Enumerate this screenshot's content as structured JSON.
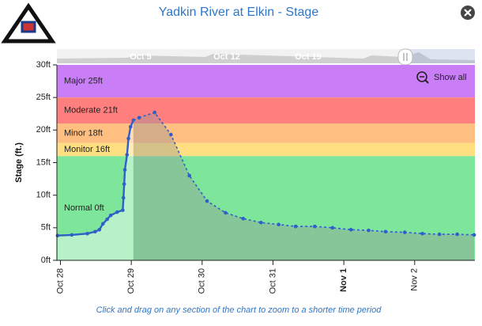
{
  "chart_data": {
    "type": "line",
    "title": "Yadkin River at Elkin - Stage",
    "y_label": "Stage (ft.)",
    "footer": "Click and drag on any section of the chart to zoom to a shorter time period",
    "reset_button": "Show all",
    "navigator_labels": [
      "Oct 5",
      "Oct 12",
      "Oct 19"
    ],
    "xlim": [
      -0.05,
      5.85
    ],
    "xticks": [
      {
        "value": 0,
        "label": "Oct 28"
      },
      {
        "value": 1,
        "label": "Oct 29"
      },
      {
        "value": 2,
        "label": "Oct 30"
      },
      {
        "value": 3,
        "label": "Oct 31"
      },
      {
        "value": 4,
        "label": "Nov 1",
        "bold": true
      },
      {
        "value": 5,
        "label": "Nov 2"
      }
    ],
    "ylim": [
      0,
      30
    ],
    "yticks": [
      {
        "value": 0,
        "label": "0ft"
      },
      {
        "value": 5,
        "label": "5ft"
      },
      {
        "value": 10,
        "label": "10ft"
      },
      {
        "value": 15,
        "label": "15ft"
      },
      {
        "value": 20,
        "label": "20ft"
      },
      {
        "value": 25,
        "label": "25ft"
      },
      {
        "value": 30,
        "label": "30ft"
      }
    ],
    "bands": [
      {
        "label": "Major 25ft",
        "from": 25,
        "to": 30,
        "color": "#c97ef7"
      },
      {
        "label": "Moderate 21ft",
        "from": 21,
        "to": 25,
        "color": "#ff7f7f"
      },
      {
        "label": "Minor 18ft",
        "from": 18,
        "to": 21,
        "color": "#ffbf80"
      },
      {
        "label": "Monitor 16ft",
        "from": 16,
        "to": 18,
        "color": "#ffdf80"
      },
      {
        "label": "Normal 0ft",
        "from": 0,
        "to": 16,
        "color": "#7de69a"
      }
    ],
    "series": [
      {
        "color": "#2f5fc8",
        "dashed": false,
        "area": "rgba(255,255,255,0.45)",
        "x": [
          -0.04,
          0.16,
          0.38,
          0.49,
          0.55,
          0.6,
          0.66,
          0.71,
          0.8,
          0.88,
          0.89,
          0.9,
          0.91,
          0.94,
          0.96,
          0.99,
          1.03
        ],
        "values": [
          3.8,
          3.9,
          4.1,
          4.4,
          4.7,
          5.6,
          6.3,
          6.9,
          7.4,
          7.7,
          9.6,
          11.7,
          13.9,
          16.2,
          18.7,
          20.5,
          21.5
        ]
      },
      {
        "color": "#2f5fc8",
        "dashed": true,
        "area": "rgba(150,150,150,0.4)",
        "x": [
          1.11,
          1.33,
          1.56,
          1.82,
          2.07,
          2.33,
          2.58,
          2.83,
          3.08,
          3.32,
          3.59,
          3.84,
          4.1,
          4.35,
          4.59,
          4.86,
          5.11,
          5.35,
          5.6,
          5.84
        ],
        "values": [
          21.9,
          22.7,
          19.3,
          13,
          9.1,
          7.3,
          6.4,
          5.8,
          5.5,
          5.2,
          5.2,
          5.0,
          4.7,
          4.6,
          4.4,
          4.3,
          4.1,
          4.0,
          4.0,
          3.9
        ]
      }
    ]
  }
}
